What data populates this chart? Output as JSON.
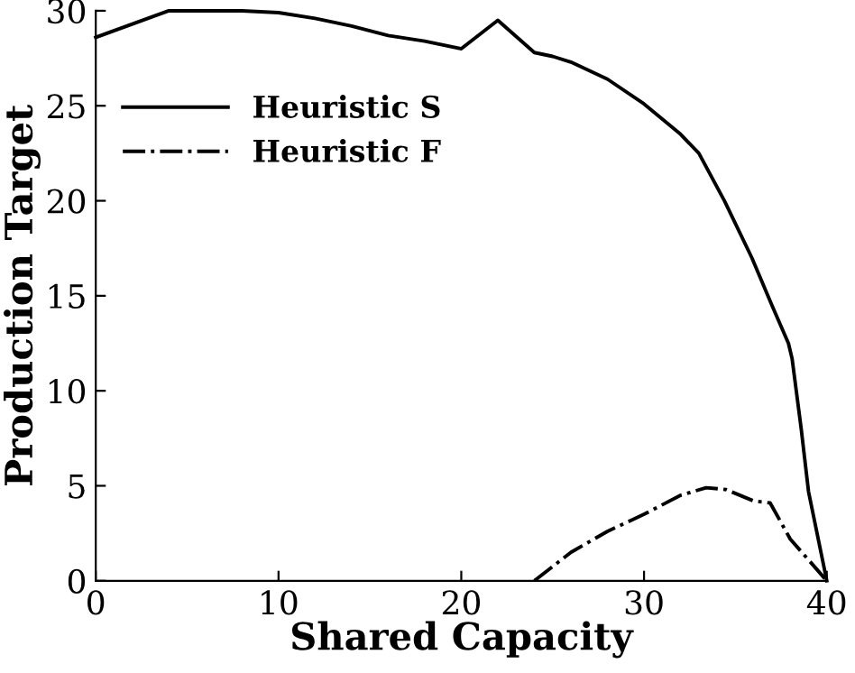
{
  "chart_data": {
    "type": "line",
    "xlabel": "Shared Capacity",
    "ylabel": "Production Target",
    "xlim": [
      0,
      40
    ],
    "ylim": [
      0,
      30
    ],
    "xticks": [
      0,
      10,
      20,
      30,
      40
    ],
    "yticks": [
      0,
      5,
      10,
      15,
      20,
      25,
      30
    ],
    "grid": false,
    "legend": "top left",
    "marker": "none",
    "series": [
      {
        "name": "Heuristic S",
        "color": "#000000",
        "line_style": "solid",
        "x": [
          0,
          4,
          8,
          10,
          12,
          14,
          16,
          18,
          20,
          22,
          24,
          25,
          26,
          28,
          30,
          32,
          33,
          34.4,
          35.9,
          37,
          37.9,
          38.1,
          38.6,
          39,
          40
        ],
        "values": [
          28.6,
          30,
          30,
          29.9,
          29.6,
          29.2,
          28.7,
          28.4,
          28.0,
          29.5,
          27.8,
          27.6,
          27.3,
          26.4,
          25.1,
          23.5,
          22.5,
          20,
          17,
          14.5,
          12.5,
          11.7,
          8,
          4.7,
          0
        ]
      },
      {
        "name": "Heuristic F",
        "color": "#000000",
        "line_style": "dashdot",
        "x": [
          24,
          26,
          28,
          30,
          32,
          33.4,
          34.5,
          36,
          36.9,
          38,
          40
        ],
        "values": [
          0,
          1.5,
          2.6,
          3.5,
          4.5,
          4.9,
          4.8,
          4.2,
          4.1,
          2.2,
          0
        ]
      }
    ]
  }
}
